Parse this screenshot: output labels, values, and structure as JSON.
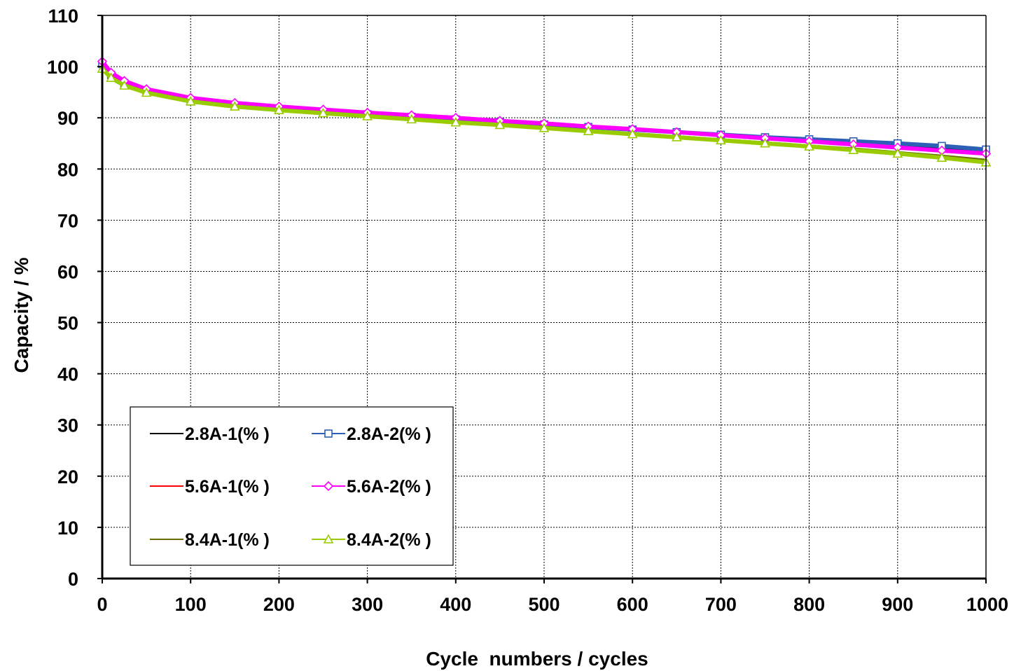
{
  "chart_data": {
    "type": "line",
    "title": "",
    "xlabel": "Cycle  numbers / cycles",
    "ylabel": "Capacity / %",
    "xlim": [
      0,
      1000
    ],
    "ylim": [
      0,
      110
    ],
    "x_ticks": [
      "0",
      "100",
      "200",
      "300",
      "400",
      "500",
      "600",
      "700",
      "800",
      "900",
      "1000"
    ],
    "y_ticks": [
      "0",
      "10",
      "20",
      "30",
      "40",
      "50",
      "60",
      "70",
      "80",
      "90",
      "100",
      "110"
    ],
    "grid": true,
    "legend_position": "bottom-left",
    "x": [
      0,
      10,
      25,
      50,
      100,
      150,
      200,
      250,
      300,
      350,
      400,
      450,
      500,
      550,
      600,
      650,
      700,
      750,
      800,
      850,
      900,
      950,
      1000
    ],
    "series": [
      {
        "name": "2.8A-1(% )",
        "color": "#000000",
        "marker": "none",
        "values": [
          100.0,
          98.2,
          96.6,
          95.0,
          93.1,
          92.2,
          91.6,
          91.1,
          90.6,
          90.1,
          89.6,
          89.1,
          88.6,
          88.1,
          87.6,
          87.1,
          86.6,
          86.1,
          85.6,
          85.1,
          84.6,
          84.1,
          83.6
        ]
      },
      {
        "name": "2.8A-2(% )",
        "color": "#2e5fb7",
        "marker": "square",
        "values": [
          100.5,
          98.4,
          96.8,
          95.1,
          93.2,
          92.3,
          91.6,
          91.1,
          90.7,
          90.2,
          89.7,
          89.2,
          88.7,
          88.2,
          87.7,
          87.2,
          86.7,
          86.2,
          85.8,
          85.4,
          85.0,
          84.5,
          83.8
        ]
      },
      {
        "name": "5.6A-1(% )",
        "color": "#ff0000",
        "marker": "none",
        "values": [
          100.2,
          98.5,
          97.0,
          95.4,
          93.7,
          92.7,
          92.0,
          91.4,
          90.9,
          90.3,
          89.8,
          89.3,
          88.8,
          88.2,
          87.7,
          87.1,
          86.5,
          86.0,
          85.4,
          84.8,
          84.2,
          83.6,
          83.0
        ]
      },
      {
        "name": "5.6A-2(% )",
        "color": "#ff00ff",
        "marker": "diamond",
        "values": [
          101.0,
          98.8,
          97.2,
          95.6,
          93.9,
          92.9,
          92.2,
          91.6,
          91.0,
          90.5,
          90.0,
          89.4,
          88.9,
          88.3,
          87.8,
          87.2,
          86.6,
          86.0,
          85.4,
          84.8,
          84.2,
          83.6,
          83.0
        ]
      },
      {
        "name": "8.4A-1(% )",
        "color": "#6b6b00",
        "marker": "none",
        "values": [
          99.8,
          98.0,
          96.5,
          95.1,
          93.4,
          92.4,
          91.7,
          91.1,
          90.5,
          89.9,
          89.3,
          88.8,
          88.2,
          87.6,
          87.0,
          86.4,
          85.8,
          85.2,
          84.6,
          84.0,
          83.3,
          82.6,
          81.8
        ]
      },
      {
        "name": "8.4A-2(% )",
        "color": "#99cc00",
        "marker": "triangle",
        "values": [
          99.6,
          97.8,
          96.3,
          94.9,
          93.2,
          92.2,
          91.5,
          90.9,
          90.3,
          89.7,
          89.1,
          88.6,
          88.0,
          87.4,
          86.8,
          86.2,
          85.6,
          85.0,
          84.4,
          83.7,
          83.0,
          82.2,
          81.3
        ]
      }
    ]
  }
}
